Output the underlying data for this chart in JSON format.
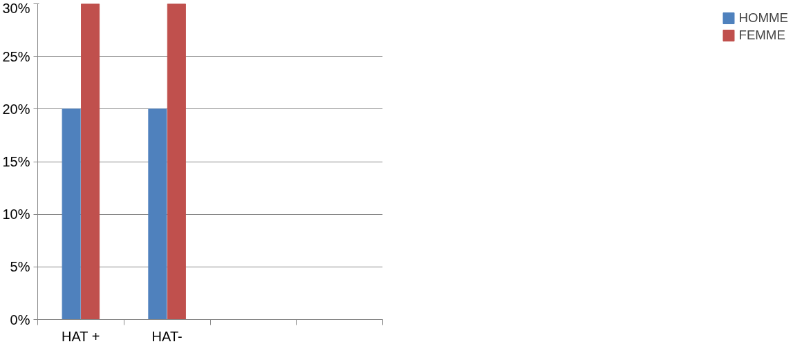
{
  "chart_data": {
    "type": "bar",
    "categories": [
      "HAT +",
      "HAT-",
      null,
      null
    ],
    "series": [
      {
        "name": "HOMME",
        "color": "#4f81bd",
        "values": [
          20,
          20,
          null,
          null
        ]
      },
      {
        "name": "FEMME",
        "color": "#c0504d",
        "values": [
          30,
          30,
          null,
          null
        ]
      }
    ],
    "ylim": [
      0,
      30
    ],
    "yticks": [
      {
        "value": 0,
        "label": "0%"
      },
      {
        "value": 5,
        "label": "5%"
      },
      {
        "value": 10,
        "label": "10%"
      },
      {
        "value": 15,
        "label": "15%"
      },
      {
        "value": 20,
        "label": "20%"
      },
      {
        "value": 25,
        "label": "25%"
      },
      {
        "value": 30,
        "label": "30%"
      }
    ],
    "grid": "y",
    "legend": "right"
  }
}
